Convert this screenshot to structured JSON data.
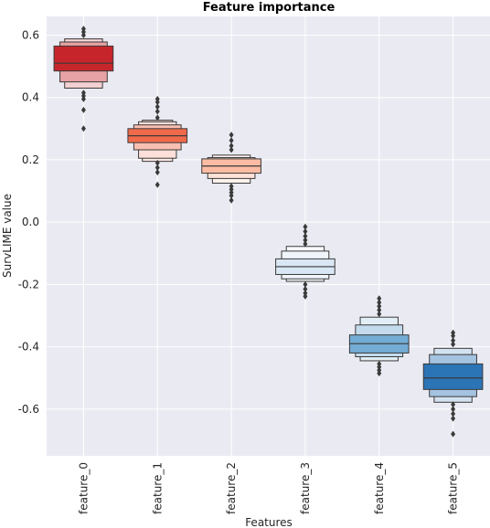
{
  "chart_data": {
    "type": "boxen",
    "title": "Feature importance",
    "xlabel": "Features",
    "ylabel": "SurvLIME value",
    "ylim": [
      -0.75,
      0.66
    ],
    "yticks": [
      0.6,
      0.4,
      0.2,
      0.0,
      -0.2,
      -0.4,
      -0.6
    ],
    "ytick_labels": [
      "0.6",
      "0.4",
      "0.2",
      "0.0",
      "-0.2",
      "-0.4",
      "-0.6"
    ],
    "grid": true,
    "background": "#eaeaf2",
    "categories": [
      "feature_0",
      "feature_1",
      "feature_2",
      "feature_3",
      "feature_4",
      "feature_5"
    ],
    "series": [
      {
        "category": "feature_0",
        "color": "#c6262b",
        "median": 0.51,
        "levels": [
          [
            0.485,
            0.565
          ],
          [
            0.45,
            0.578
          ],
          [
            0.43,
            0.588
          ]
        ],
        "outliers": [
          0.62,
          0.61,
          0.6,
          0.415,
          0.405,
          0.395,
          0.36,
          0.3
        ]
      },
      {
        "category": "feature_1",
        "color": "#f06a4a",
        "median": 0.277,
        "levels": [
          [
            0.255,
            0.3
          ],
          [
            0.232,
            0.312
          ],
          [
            0.205,
            0.322
          ],
          [
            0.195,
            0.327
          ]
        ],
        "outliers": [
          0.395,
          0.385,
          0.37,
          0.355,
          0.335,
          0.19,
          0.175,
          0.16,
          0.12
        ]
      },
      {
        "category": "feature_2",
        "color": "#fcbca3",
        "median": 0.18,
        "levels": [
          [
            0.157,
            0.203
          ],
          [
            0.14,
            0.207
          ],
          [
            0.125,
            0.215
          ]
        ],
        "outliers": [
          0.28,
          0.262,
          0.245,
          0.232,
          0.115,
          0.105,
          0.095,
          0.085,
          0.07
        ]
      },
      {
        "category": "feature_3",
        "color": "#d9e7f4",
        "median": -0.143,
        "levels": [
          [
            -0.168,
            -0.118
          ],
          [
            -0.182,
            -0.093
          ],
          [
            -0.19,
            -0.078
          ]
        ],
        "outliers": [
          -0.015,
          -0.03,
          -0.045,
          -0.058,
          -0.07,
          -0.2,
          -0.215,
          -0.228,
          -0.238
        ]
      },
      {
        "category": "feature_4",
        "color": "#73acd5",
        "median": -0.39,
        "levels": [
          [
            -0.42,
            -0.362
          ],
          [
            -0.432,
            -0.33
          ],
          [
            -0.445,
            -0.305
          ]
        ],
        "outliers": [
          -0.245,
          -0.258,
          -0.27,
          -0.282,
          -0.295,
          -0.455,
          -0.465,
          -0.475,
          -0.485
        ]
      },
      {
        "category": "feature_5",
        "color": "#2b74b6",
        "median": -0.5,
        "levels": [
          [
            -0.537,
            -0.455
          ],
          [
            -0.56,
            -0.425
          ],
          [
            -0.578,
            -0.405
          ]
        ],
        "outliers": [
          -0.355,
          -0.365,
          -0.38,
          -0.392,
          -0.585,
          -0.6,
          -0.615,
          -0.63,
          -0.68
        ]
      }
    ]
  }
}
